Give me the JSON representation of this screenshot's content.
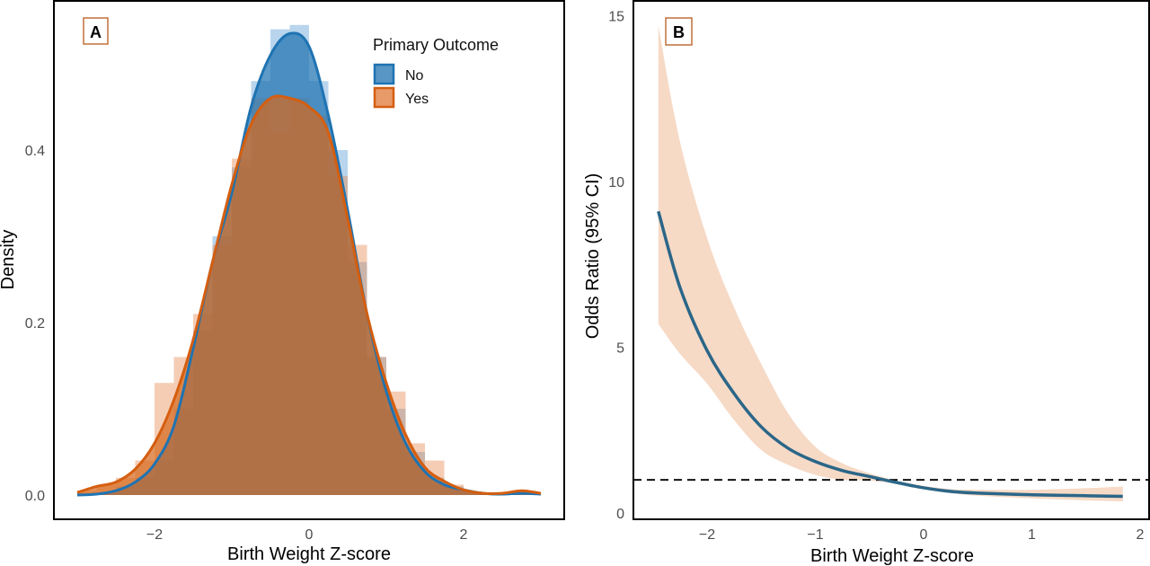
{
  "chart_data": [
    {
      "panel": "A",
      "type": "area",
      "xlabel": "Birth Weight Z-score",
      "ylabel": "Density",
      "xlim": [
        -3.3,
        3.3
      ],
      "ylim": [
        0,
        0.58
      ],
      "xticks": [
        -2,
        0,
        2
      ],
      "xtick_labels": [
        "−2",
        "0",
        "2"
      ],
      "yticks": [
        0,
        0.2,
        0.4
      ],
      "ytick_labels": [
        "0.0",
        "0.2",
        "0.4"
      ],
      "grid": false,
      "legend": {
        "title": "Primary Outcome",
        "placement": "top-right"
      },
      "x": [
        -3,
        -2.75,
        -2.5,
        -2.25,
        -2,
        -1.75,
        -1.5,
        -1.25,
        -1,
        -0.75,
        -0.5,
        -0.25,
        0,
        0.25,
        0.5,
        0.75,
        1,
        1.25,
        1.5,
        1.75,
        2,
        2.25,
        2.5,
        2.75,
        3
      ],
      "series": [
        {
          "name": "No",
          "color": "#1f73b2",
          "values": [
            0,
            0.001,
            0.005,
            0.015,
            0.036,
            0.08,
            0.17,
            0.27,
            0.35,
            0.45,
            0.51,
            0.535,
            0.52,
            0.44,
            0.33,
            0.21,
            0.12,
            0.06,
            0.027,
            0.012,
            0.006,
            0.002,
            0.001,
            0.002,
            0.001
          ],
          "histogram": [
            0,
            0.002,
            0.01,
            0.02,
            0.04,
            0.1,
            0.19,
            0.3,
            0.38,
            0.48,
            0.54,
            0.545,
            0.48,
            0.4,
            0.27,
            0.16,
            0.1,
            0.05,
            0.02,
            0.01,
            0.004,
            0.002,
            0.002,
            0.001
          ]
        },
        {
          "name": "Yes",
          "color": "#d55e0f",
          "values": [
            0.003,
            0.01,
            0.015,
            0.03,
            0.06,
            0.11,
            0.18,
            0.27,
            0.36,
            0.43,
            0.46,
            0.46,
            0.45,
            0.42,
            0.32,
            0.21,
            0.13,
            0.07,
            0.032,
            0.016,
            0.006,
            0.002,
            0.002,
            0.005,
            0.002
          ],
          "histogram": [
            0.005,
            0.012,
            0.02,
            0.04,
            0.13,
            0.16,
            0.21,
            0.29,
            0.39,
            0.46,
            0.42,
            0.46,
            0.44,
            0.37,
            0.29,
            0.16,
            0.12,
            0.06,
            0.04,
            0.012,
            0.004,
            0.002,
            0.004,
            0.003
          ]
        }
      ]
    },
    {
      "panel": "B",
      "type": "line",
      "xlabel": "Birth Weight Z-score",
      "ylabel": "Odds Ratio (95% CI)",
      "xlim": [
        -2.7,
        2
      ],
      "ylim": [
        -0.2,
        15.5
      ],
      "xticks": [
        -2,
        -1,
        0,
        1,
        2
      ],
      "xtick_labels": [
        "−2",
        "−1",
        "0",
        "1",
        "2"
      ],
      "yticks": [
        0,
        5,
        10,
        15
      ],
      "ytick_labels": [
        "0",
        "5",
        "10",
        "15"
      ],
      "grid": false,
      "reference_line": {
        "y": 1,
        "style": "dashed"
      },
      "x": [
        -2.45,
        -2.25,
        -2,
        -1.75,
        -1.5,
        -1.25,
        -1,
        -0.75,
        -0.5,
        -0.25,
        0,
        0.25,
        0.5,
        1,
        1.5,
        1.84
      ],
      "series": [
        {
          "role": "estimate",
          "color": "#2b6688",
          "values": [
            9.1,
            6.8,
            4.9,
            3.6,
            2.6,
            1.95,
            1.55,
            1.28,
            1.1,
            0.92,
            0.76,
            0.65,
            0.6,
            0.55,
            0.52,
            0.5
          ]
        },
        {
          "role": "ci_lower",
          "color": "#f6dac6",
          "values": [
            5.7,
            4.8,
            3.9,
            2.8,
            1.9,
            1.45,
            1.15,
            1.0,
            0.98,
            0.88,
            0.72,
            0.6,
            0.52,
            0.44,
            0.38,
            0.35
          ]
        },
        {
          "role": "ci_upper",
          "color": "#f6dac6",
          "values": [
            14.7,
            11.2,
            8.3,
            6.2,
            4.5,
            3.0,
            2.0,
            1.5,
            1.2,
            0.98,
            0.82,
            0.72,
            0.7,
            0.7,
            0.75,
            0.8
          ]
        }
      ]
    }
  ],
  "panel_labels": {
    "a": "A",
    "b": "B"
  }
}
